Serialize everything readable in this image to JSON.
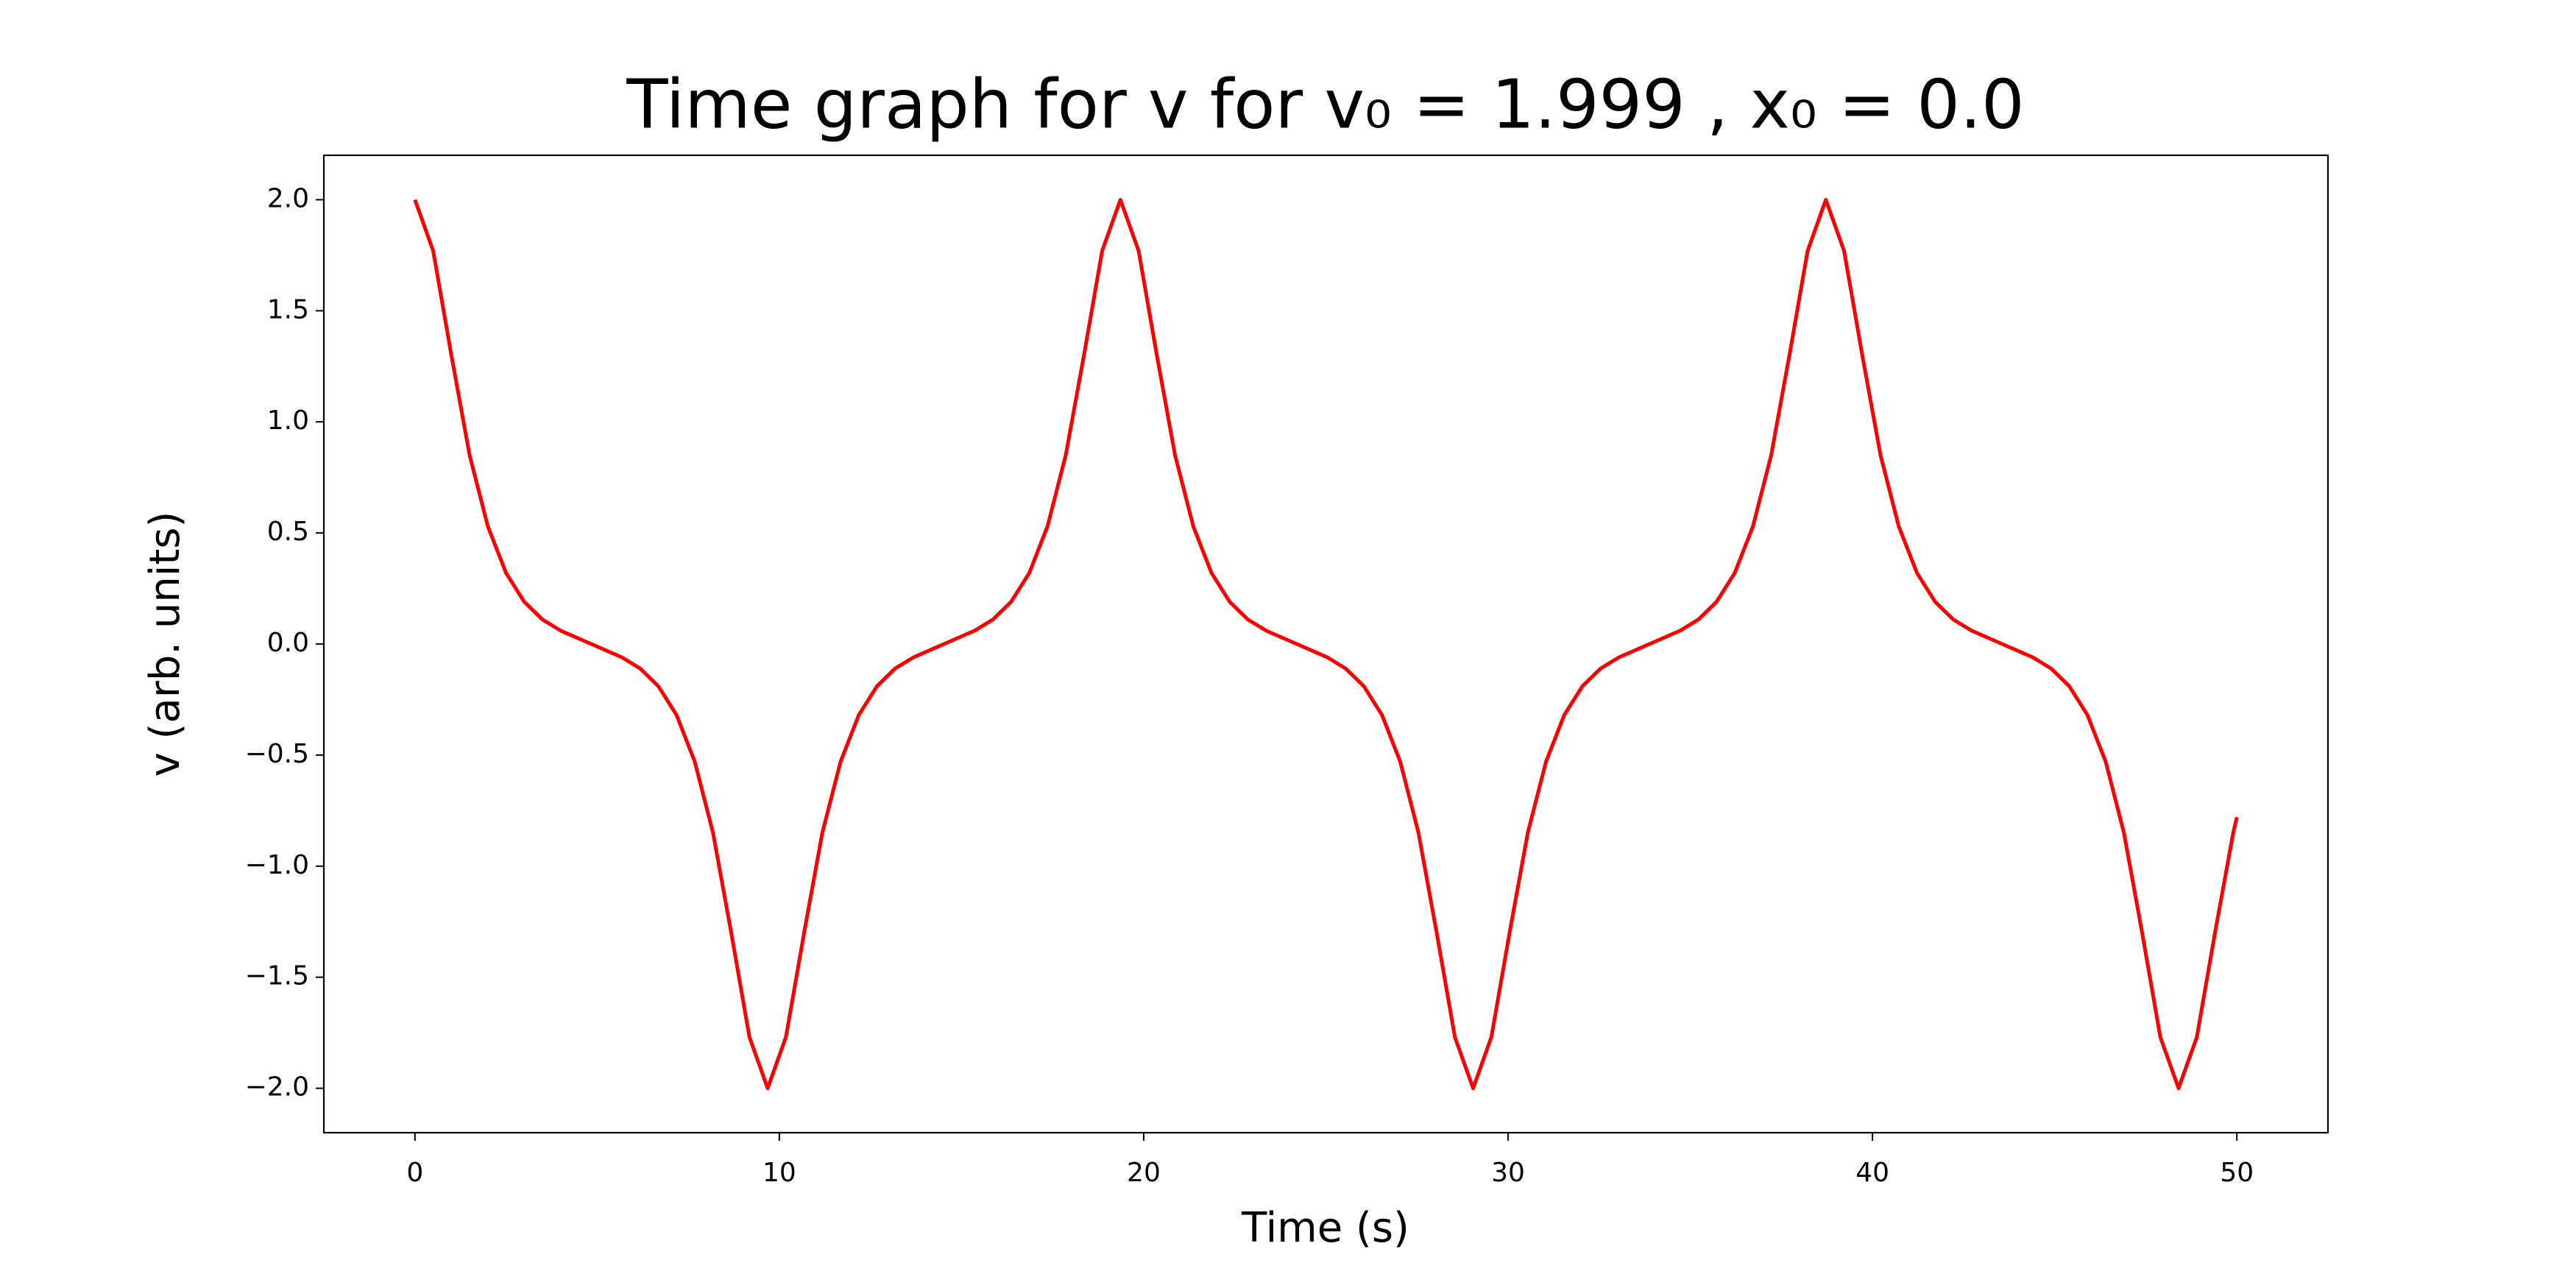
{
  "chart_data": {
    "type": "line",
    "title": "Time graph for v for v₀ = 1.999 , x₀ = 0.0",
    "xlabel": "Time (s)",
    "ylabel": "v (arb. units)",
    "x": [
      0,
      0.5,
      1,
      1.5,
      2,
      2.5,
      3,
      3.5,
      4,
      4.84,
      5.68,
      6.18,
      6.68,
      7.18,
      7.68,
      8.18,
      8.68,
      9.18,
      9.68,
      10.18,
      10.68,
      11.18,
      11.68,
      12.18,
      12.68,
      13.18,
      13.68,
      14.52,
      15.36,
      15.86,
      16.36,
      16.86,
      17.36,
      17.86,
      18.36,
      18.86,
      19.36,
      19.86,
      20.36,
      20.86,
      21.36,
      21.86,
      22.36,
      22.86,
      23.36,
      24.2,
      25.04,
      25.54,
      26.04,
      26.54,
      27.04,
      27.54,
      28.04,
      28.54,
      29.04,
      29.54,
      30.04,
      30.54,
      31.04,
      31.54,
      32.04,
      32.54,
      33.04,
      33.88,
      34.72,
      35.22,
      35.72,
      36.22,
      36.72,
      37.22,
      37.72,
      38.22,
      38.72,
      39.22,
      39.72,
      40.22,
      40.72,
      41.22,
      41.72,
      42.22,
      42.72,
      43.56,
      44.4,
      44.9,
      45.4,
      45.9,
      46.4,
      46.9,
      47.4,
      47.9,
      48.4,
      48.9,
      49.4,
      49.9,
      50
    ],
    "series": [
      {
        "name": "v",
        "color": "#ff0000",
        "values": [
          2.0,
          1.77,
          1.3,
          0.85,
          0.53,
          0.32,
          0.19,
          0.11,
          0.06,
          0,
          -0.06,
          -0.11,
          -0.19,
          -0.32,
          -0.53,
          -0.85,
          -1.3,
          -1.77,
          -2.0,
          -1.77,
          -1.3,
          -0.85,
          -0.53,
          -0.32,
          -0.19,
          -0.11,
          -0.06,
          0,
          0.06,
          0.11,
          0.19,
          0.32,
          0.53,
          0.85,
          1.3,
          1.77,
          2.0,
          1.77,
          1.3,
          0.85,
          0.53,
          0.32,
          0.19,
          0.11,
          0.06,
          0,
          -0.06,
          -0.11,
          -0.19,
          -0.32,
          -0.53,
          -0.85,
          -1.3,
          -1.77,
          -2.0,
          -1.77,
          -1.3,
          -0.85,
          -0.53,
          -0.32,
          -0.19,
          -0.11,
          -0.06,
          0,
          0.06,
          0.11,
          0.19,
          0.32,
          0.53,
          0.85,
          1.3,
          1.77,
          2.0,
          1.77,
          1.3,
          0.85,
          0.53,
          0.32,
          0.19,
          0.11,
          0.06,
          0,
          -0.06,
          -0.11,
          -0.19,
          -0.32,
          -0.53,
          -0.85,
          -1.3,
          -1.77,
          -2.0,
          -1.77,
          -1.3,
          -0.85,
          -0.78
        ]
      }
    ],
    "xlim": [
      -2.5,
      52.5
    ],
    "xticks": [
      0,
      10,
      20,
      30,
      40,
      50
    ],
    "ylim": [
      -2.2,
      2.2
    ],
    "yticks": [
      {
        "value": -2.0,
        "label": "−2.0"
      },
      {
        "value": -1.5,
        "label": "−1.5"
      },
      {
        "value": -1.0,
        "label": "−1.0"
      },
      {
        "value": -0.5,
        "label": "−0.5"
      },
      {
        "value": 0.0,
        "label": "0.0"
      },
      0.5,
      {
        "value": 1.0,
        "label": "1.0"
      },
      1.5,
      {
        "value": 2.0,
        "label": "2.0"
      }
    ],
    "grid": false
  }
}
